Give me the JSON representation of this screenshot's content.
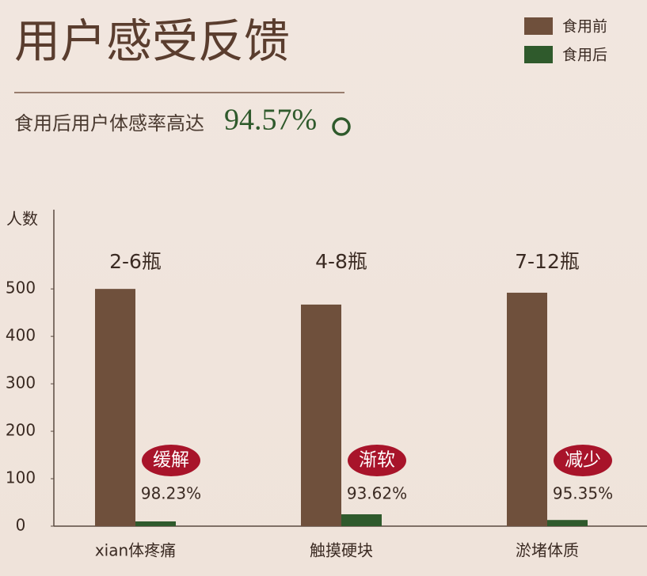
{
  "chart_data": {
    "type": "bar",
    "title": "用户感受反馈",
    "subtitle": "食用后用户体感率高达",
    "highlight": "94.57%",
    "y_label": "人数",
    "categories": [
      "xian体疼痛",
      "触摸硬块",
      "淤堵体质"
    ],
    "group_labels": [
      "2-6瓶",
      "4-8瓶",
      "7-12瓶"
    ],
    "badges": [
      "缓解",
      "渐软",
      "减少"
    ],
    "rates": [
      "98.23%",
      "93.62%",
      "95.35%"
    ],
    "series": [
      {
        "name": "食用前",
        "color": "#6f503c",
        "values": [
          500,
          467,
          492
        ]
      },
      {
        "name": "食用后",
        "color": "#2f5a2c",
        "values": [
          10,
          25,
          13
        ]
      }
    ],
    "ylim": [
      0,
      667
    ],
    "yticks": [
      0,
      100,
      200,
      300,
      400,
      500
    ],
    "legend": "top-right",
    "badge_color": "#a8142a"
  }
}
